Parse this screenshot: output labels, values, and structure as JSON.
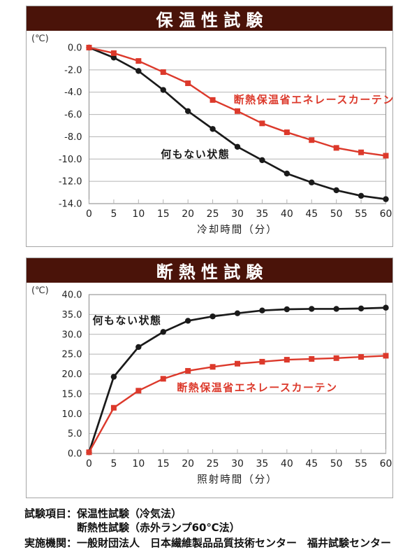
{
  "colors": {
    "title_bar": "#4a1309",
    "red_series": "#dc392b",
    "black_series": "#1a1a1a",
    "grid": "#b3b3b3",
    "plot_border": "#999999",
    "axis_text": "#222222"
  },
  "chart_data": [
    {
      "type": "line",
      "title": "保温性試験",
      "unit_label": "(℃)",
      "xlabel": "冷却時間（分）",
      "x": [
        0,
        5,
        10,
        15,
        20,
        25,
        30,
        35,
        40,
        45,
        50,
        55,
        60
      ],
      "ylim": [
        -14.0,
        0.0
      ],
      "ytick_step": 2.0,
      "grid": true,
      "legend_position": "inline-annotations",
      "series": [
        {
          "name": "何もない状態",
          "color": "#1a1a1a",
          "marker": "circle",
          "values": [
            0.0,
            -0.9,
            -2.1,
            -3.8,
            -5.7,
            -7.3,
            -8.9,
            -10.1,
            -11.3,
            -12.1,
            -12.8,
            -13.3,
            -13.6
          ],
          "label_pos": {
            "x": 21.5,
            "y": -9.9
          }
        },
        {
          "name": "断熱保温省エネレースカーテン",
          "color": "#dc392b",
          "marker": "square",
          "values": [
            0.0,
            -0.5,
            -1.2,
            -2.2,
            -3.2,
            -4.7,
            -5.7,
            -6.8,
            -7.6,
            -8.3,
            -9.0,
            -9.4,
            -9.7
          ],
          "label_pos": {
            "x": 45.5,
            "y": -5.0
          }
        }
      ]
    },
    {
      "type": "line",
      "title": "断熱性試験",
      "unit_label": "(℃)",
      "xlabel": "照射時間（分）",
      "x": [
        0,
        5,
        10,
        15,
        20,
        25,
        30,
        35,
        40,
        45,
        50,
        55,
        60
      ],
      "ylim": [
        0.0,
        40.0
      ],
      "ytick_step": 5.0,
      "grid": true,
      "legend_position": "inline-annotations",
      "series": [
        {
          "name": "何もない状態",
          "color": "#1a1a1a",
          "marker": "circle",
          "values": [
            0.3,
            19.3,
            26.8,
            30.6,
            33.4,
            34.5,
            35.3,
            36.0,
            36.3,
            36.4,
            36.4,
            36.5,
            36.7
          ],
          "label_pos": {
            "x": 7.7,
            "y": 32.6
          }
        },
        {
          "name": "断熱保温省エネレースカーテン",
          "color": "#dc392b",
          "marker": "square",
          "values": [
            0.3,
            11.5,
            15.8,
            18.8,
            20.8,
            21.8,
            22.6,
            23.1,
            23.6,
            23.8,
            24.0,
            24.3,
            24.6
          ],
          "label_pos": {
            "x": 34.0,
            "y": 15.7
          }
        }
      ]
    }
  ],
  "footer": {
    "items_label": "試験項目：",
    "item1": "保温性試験（冷気法）",
    "item2": "断熱性試験（赤外ランプ60℃法）",
    "org_label": "実施機関：",
    "org_value": "一般財団法人　日本繊維製品品質技術センター　福井試験センター"
  }
}
